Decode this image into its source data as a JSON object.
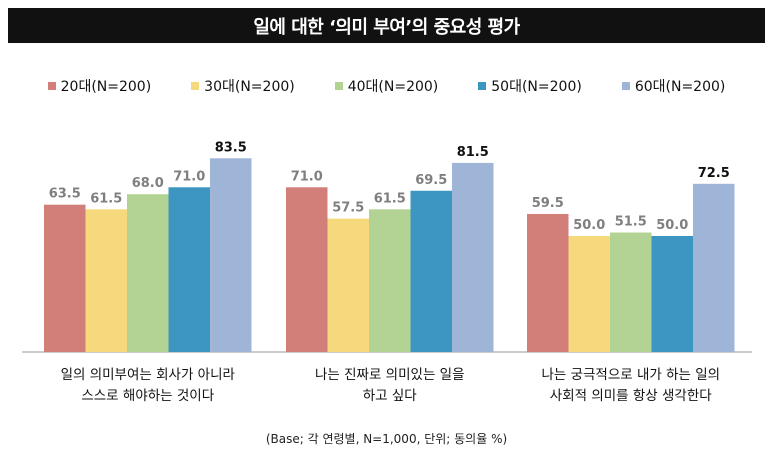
{
  "chart_data": {
    "type": "bar",
    "title": "일에 대한 ‘의미 부여’의 중요성 평가",
    "categories": [
      [
        "일의 의미부여는 회사가 아니라",
        "스스로 해야하는 것이다"
      ],
      [
        "나는 진짜로 의미있는 일을",
        "하고 싶다"
      ],
      [
        "나는 궁극적으로 내가 하는 일의",
        "사회적 의미를 항상 생각한다"
      ]
    ],
    "series": [
      {
        "name": "20대(N=200)",
        "color": "#d27f7a",
        "values": [
          63.5,
          71.0,
          59.5
        ]
      },
      {
        "name": "30대(N=200)",
        "color": "#f7d97d",
        "values": [
          61.5,
          57.5,
          50.0
        ]
      },
      {
        "name": "40대(N=200)",
        "color": "#b2d394",
        "values": [
          68.0,
          61.5,
          51.5
        ]
      },
      {
        "name": "50대(N=200)",
        "color": "#3d96c1",
        "values": [
          71.0,
          69.5,
          50.0
        ]
      },
      {
        "name": "60대(N=200)",
        "color": "#9fb5d8",
        "values": [
          83.5,
          81.5,
          72.5
        ]
      }
    ],
    "highlight_color": "#111111",
    "label_color": "#7f7f7f",
    "ylim": [
      0,
      100
    ],
    "note": "(Base; 각 연령별, N=1,000, 단위; 동의율 %)"
  }
}
